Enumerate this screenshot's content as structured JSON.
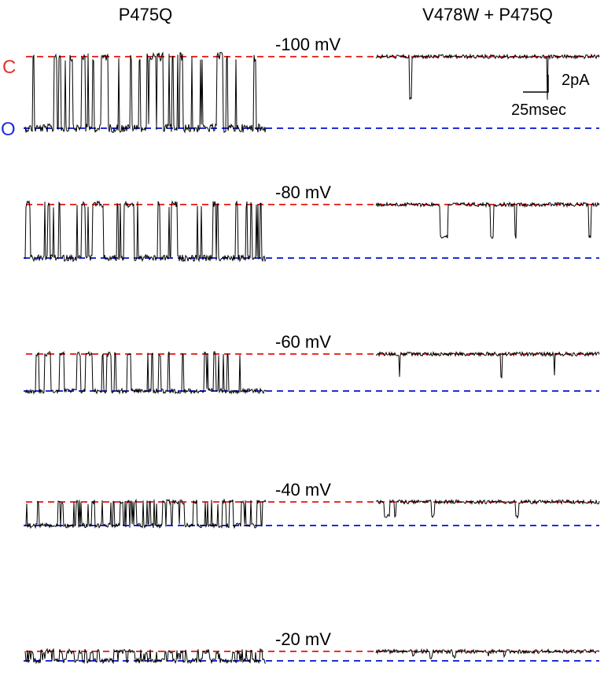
{
  "columns": [
    "P475Q",
    "V478W + P475Q"
  ],
  "levels": {
    "closed": "C",
    "open": "O"
  },
  "rows": [
    {
      "voltage": "-100 mV"
    },
    {
      "voltage": "-80 mV"
    },
    {
      "voltage": "-60 mV"
    },
    {
      "voltage": "-40 mV"
    },
    {
      "voltage": "-20 mV"
    }
  ],
  "scale_bar": {
    "current": "2pA",
    "time": "25msec"
  }
}
